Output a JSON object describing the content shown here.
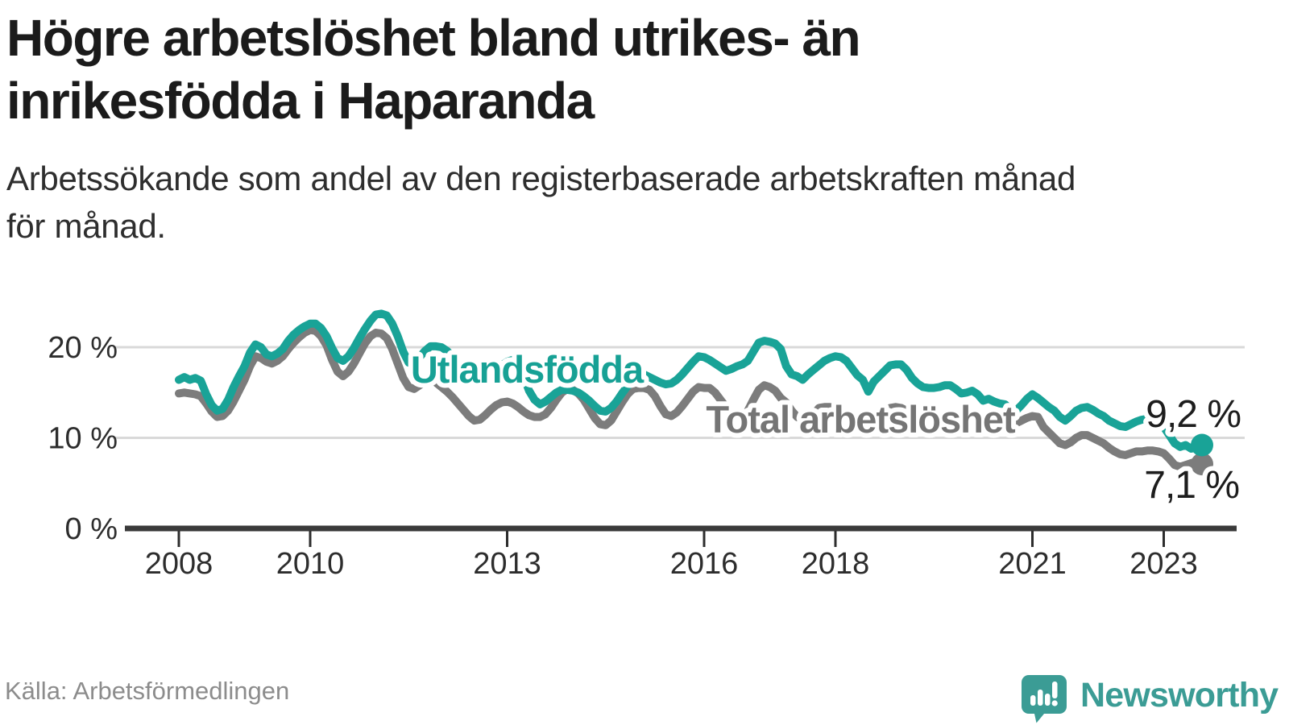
{
  "title": {
    "line1": "Högre arbetslöshet bland utrikes- än",
    "line2": "inrikesfödda i Haparanda"
  },
  "subtitle": {
    "line1": "Arbetssökande som andel av den registerbaserade arbetskraften månad",
    "line2": "för månad."
  },
  "source": "Källa: Arbetsförmedlingen",
  "logo": {
    "text": "Newsworthy",
    "icon": "speech-bubble-bar-chart-exclamation",
    "color": "#3b9c95"
  },
  "colors": {
    "foreign_line": "#19a397",
    "total_line": "#7c7c7c",
    "foreign_label": "#17a195",
    "total_label": "#757575",
    "value_label": "#1d1d1d",
    "grid": "#d9d9d9",
    "axis": "#3a3a3a",
    "tick_text": "#2d2d2d",
    "halo": "#ffffff"
  },
  "chart_data": {
    "type": "line",
    "title": "Högre arbetslöshet bland utrikes- än inrikesfödda i Haparanda",
    "subtitle": "Arbetssökande som andel av den registerbaserade arbetskraften månad för månad.",
    "unit": "%",
    "frequency": "monthly",
    "x_start": "2008-01",
    "x_end": "2023-08",
    "ylim": [
      0,
      25
    ],
    "grid": "horizontal",
    "y_ticks": [
      {
        "label": "0 %",
        "value": 0
      },
      {
        "label": "10 %",
        "value": 10
      },
      {
        "label": "20 %",
        "value": 20
      }
    ],
    "x_ticks": [
      {
        "label": "2008",
        "year": 2008
      },
      {
        "label": "2010",
        "year": 2010
      },
      {
        "label": "2013",
        "year": 2013
      },
      {
        "label": "2016",
        "year": 2016
      },
      {
        "label": "2018",
        "year": 2018
      },
      {
        "label": "2021",
        "year": 2021
      },
      {
        "label": "2023",
        "year": 2023
      }
    ],
    "series": [
      {
        "key": "foreign",
        "label": "Utlandsfödda",
        "color": "#19a397",
        "end_label": "9,2 %",
        "end_value": 9.2,
        "values": [
          16.4,
          16.7,
          16.4,
          16.6,
          16.3,
          14.8,
          13.6,
          13.0,
          13.2,
          14.2,
          15.6,
          16.8,
          17.9,
          19.4,
          20.3,
          20.0,
          19.2,
          19.0,
          19.3,
          19.8,
          20.7,
          21.4,
          21.9,
          22.3,
          22.6,
          22.6,
          22.1,
          21.2,
          19.9,
          18.8,
          18.5,
          19.0,
          19.9,
          21.0,
          22.0,
          22.9,
          23.6,
          23.7,
          23.5,
          22.6,
          21.2,
          19.5,
          18.3,
          18.1,
          18.9,
          19.6,
          20.1,
          20.1,
          20.0,
          19.6,
          19.0,
          18.4,
          17.8,
          17.1,
          16.6,
          16.5,
          16.8,
          17.2,
          17.6,
          18.0,
          18.4,
          18.6,
          18.2,
          16.8,
          15.2,
          14.2,
          13.7,
          14.0,
          14.5,
          15.0,
          15.3,
          15.3,
          15.2,
          15.0,
          14.6,
          14.1,
          13.5,
          13.0,
          12.9,
          13.3,
          14.0,
          14.9,
          15.7,
          16.4,
          16.8,
          17.0,
          16.7,
          16.4,
          16.1,
          15.9,
          16.0,
          16.4,
          17.0,
          17.7,
          18.4,
          19.0,
          18.9,
          18.6,
          18.2,
          17.8,
          17.4,
          17.6,
          17.9,
          18.1,
          18.5,
          19.5,
          20.5,
          20.7,
          20.6,
          20.4,
          19.8,
          17.9,
          17.0,
          16.8,
          16.4,
          17.0,
          17.5,
          18.0,
          18.5,
          18.8,
          19.0,
          18.9,
          18.5,
          17.7,
          16.9,
          16.4,
          15.1,
          16.2,
          16.8,
          17.4,
          18.0,
          18.1,
          18.1,
          17.5,
          16.6,
          16.0,
          15.6,
          15.5,
          15.5,
          15.6,
          15.8,
          15.8,
          15.4,
          14.9,
          15.0,
          15.2,
          14.8,
          14.1,
          14.3,
          14.0,
          13.8,
          13.7,
          13.1,
          13.0,
          13.6,
          14.3,
          14.8,
          14.4,
          13.9,
          13.4,
          13.0,
          12.3,
          11.9,
          12.4,
          13.0,
          13.3,
          13.4,
          13.1,
          12.7,
          12.4,
          11.9,
          11.6,
          11.3,
          11.2,
          11.5,
          11.8,
          12.0,
          12.1,
          12.1,
          11.9,
          11.2,
          10.3,
          9.4,
          9.0,
          9.2,
          8.8,
          8.9,
          9.2
        ]
      },
      {
        "key": "total",
        "label": "Total arbetslöshet",
        "color": "#7c7c7c",
        "end_label": "7,1 %",
        "end_value": 7.1,
        "values": [
          14.9,
          15.0,
          14.9,
          14.8,
          14.6,
          13.8,
          12.9,
          12.3,
          12.4,
          13.0,
          14.0,
          15.2,
          16.4,
          17.9,
          19.0,
          18.8,
          18.4,
          18.2,
          18.5,
          19.0,
          19.8,
          20.5,
          21.1,
          21.6,
          21.9,
          21.8,
          21.2,
          20.2,
          18.6,
          17.3,
          16.8,
          17.3,
          18.2,
          19.3,
          20.4,
          21.2,
          21.6,
          21.5,
          21.0,
          19.8,
          18.2,
          16.6,
          15.6,
          15.4,
          15.8,
          16.2,
          16.4,
          16.1,
          15.6,
          15.1,
          14.5,
          13.8,
          13.1,
          12.4,
          11.9,
          12.0,
          12.5,
          13.1,
          13.6,
          13.9,
          14.0,
          13.8,
          13.4,
          12.9,
          12.5,
          12.3,
          12.3,
          12.6,
          13.3,
          14.2,
          15.0,
          15.4,
          15.3,
          14.9,
          14.2,
          13.2,
          12.2,
          11.5,
          11.4,
          11.9,
          12.9,
          13.9,
          14.8,
          15.4,
          15.5,
          15.5,
          15.3,
          14.6,
          13.5,
          12.6,
          12.4,
          12.8,
          13.5,
          14.3,
          15.1,
          15.6,
          15.5,
          15.5,
          15.0,
          14.2,
          13.4,
          12.6,
          12.2,
          12.4,
          13.0,
          14.2,
          15.3,
          15.8,
          15.6,
          15.2,
          14.4,
          13.9,
          13.0,
          12.3,
          12.0,
          12.2,
          12.6,
          13.3,
          13.4,
          13.4,
          13.3,
          13.1,
          12.8,
          12.4,
          11.9,
          11.5,
          11.4,
          11.7,
          12.2,
          12.8,
          13.3,
          13.4,
          13.3,
          13.0,
          12.7,
          12.3,
          11.9,
          11.6,
          11.6,
          11.7,
          11.9,
          12.0,
          12.0,
          12.0,
          12.1,
          12.2,
          12.1,
          11.9,
          11.9,
          11.8,
          11.6,
          11.5,
          11.4,
          11.6,
          11.9,
          12.2,
          12.4,
          12.3,
          11.2,
          10.6,
          10.0,
          9.4,
          9.2,
          9.5,
          10.0,
          10.3,
          10.3,
          10.0,
          9.7,
          9.4,
          8.9,
          8.5,
          8.2,
          8.1,
          8.3,
          8.5,
          8.5,
          8.6,
          8.6,
          8.5,
          8.3,
          7.7,
          7.0,
          6.8,
          7.0,
          7.2,
          7.4,
          7.1
        ]
      }
    ]
  }
}
